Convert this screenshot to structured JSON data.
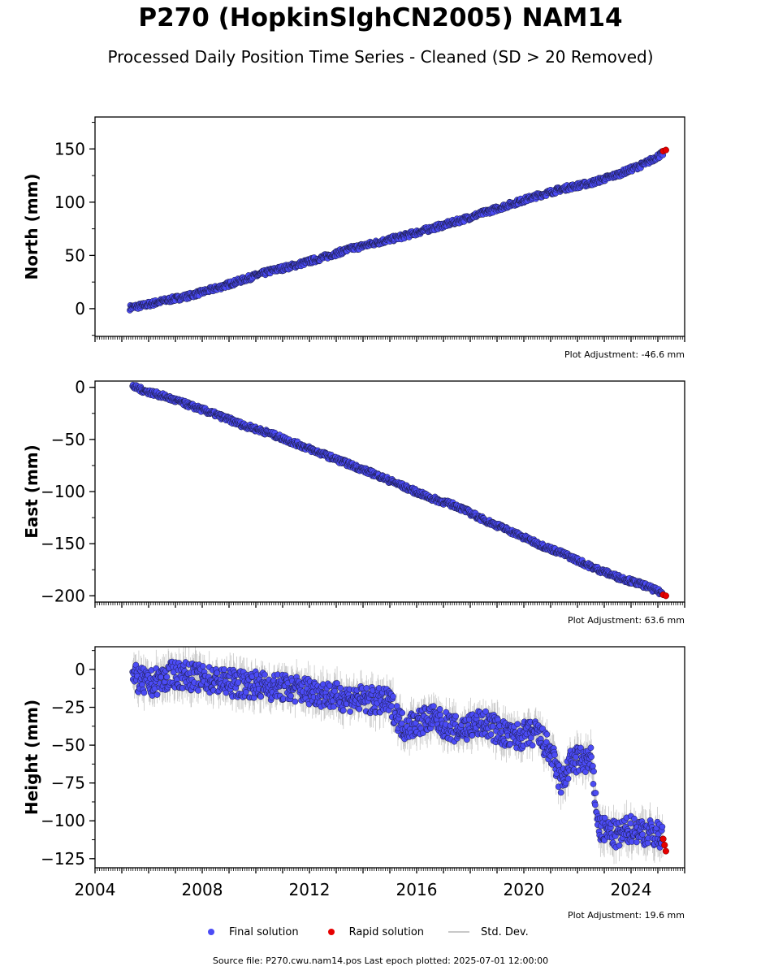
{
  "figure": {
    "title": "P270 (HopkinSlghCN2005) NAM14",
    "subtitle": "Processed Daily Position Time Series - Cleaned (SD > 20 Removed)",
    "source": "Source file: P270.cwu.nam14.pos  Last epoch plotted: 2025-07-01 12:00:00"
  },
  "legend": {
    "items": [
      {
        "label": "Final solution",
        "color": "#4b4bf5"
      },
      {
        "label": "Rapid solution",
        "color": "#e60000"
      },
      {
        "label": "Std. Dev.",
        "color": "#c8c8c8"
      }
    ]
  },
  "colors": {
    "final": "#4b4bf5",
    "rapid": "#e60000",
    "stddev": "#c8c8c8",
    "edge": "#1a1a40"
  },
  "chart_data": [
    {
      "type": "scatter",
      "ylabel": "North (mm)",
      "xlim": [
        2004,
        2026
      ],
      "ylim": [
        -26,
        180
      ],
      "yticks": [
        0,
        50,
        100,
        150
      ],
      "xticks": [],
      "adjustment": "Plot Adjustment: -46.6 mm",
      "final": [
        [
          2005.3,
          1
        ],
        [
          2005.8,
          3
        ],
        [
          2006.5,
          7
        ],
        [
          2007.5,
          12
        ],
        [
          2008.5,
          19
        ],
        [
          2009.5,
          27
        ],
        [
          2010.5,
          35
        ],
        [
          2011.5,
          41
        ],
        [
          2012.5,
          48
        ],
        [
          2013.5,
          56
        ],
        [
          2014.5,
          62
        ],
        [
          2015.5,
          68
        ],
        [
          2016.5,
          75
        ],
        [
          2017.5,
          82
        ],
        [
          2018.5,
          90
        ],
        [
          2019.5,
          98
        ],
        [
          2020.5,
          106
        ],
        [
          2021.5,
          113
        ],
        [
          2022.5,
          118
        ],
        [
          2023.5,
          126
        ],
        [
          2024.5,
          136
        ],
        [
          2025.2,
          146
        ]
      ],
      "rapid": [
        [
          2025.2,
          148
        ],
        [
          2025.3,
          149
        ]
      ],
      "scatter_amp": 2.5
    },
    {
      "type": "scatter",
      "ylabel": "East (mm)",
      "xlim": [
        2004,
        2026
      ],
      "ylim": [
        -206,
        6
      ],
      "yticks": [
        0,
        -50,
        -100,
        -150,
        -200
      ],
      "xticks": [],
      "adjustment": "Plot Adjustment: 63.6 mm",
      "final": [
        [
          2005.4,
          1
        ],
        [
          2005.8,
          -3
        ],
        [
          2006.5,
          -8
        ],
        [
          2007.5,
          -17
        ],
        [
          2008.5,
          -26
        ],
        [
          2009.5,
          -36
        ],
        [
          2010.5,
          -44
        ],
        [
          2011.5,
          -54
        ],
        [
          2012.5,
          -64
        ],
        [
          2013.5,
          -74
        ],
        [
          2014.5,
          -84
        ],
        [
          2015.5,
          -95
        ],
        [
          2016.5,
          -106
        ],
        [
          2017.5,
          -114
        ],
        [
          2018.5,
          -127
        ],
        [
          2019.5,
          -138
        ],
        [
          2020.5,
          -150
        ],
        [
          2021.5,
          -160
        ],
        [
          2022.5,
          -172
        ],
        [
          2023.5,
          -182
        ],
        [
          2024.5,
          -190
        ],
        [
          2025.2,
          -198
        ]
      ],
      "rapid": [
        [
          2025.2,
          -199
        ],
        [
          2025.3,
          -200
        ]
      ],
      "scatter_amp": 2.5
    },
    {
      "type": "scatter",
      "ylabel": "Height (mm)",
      "xlim": [
        2004,
        2026
      ],
      "ylim": [
        -131,
        15
      ],
      "yticks": [
        0,
        -25,
        -50,
        -75,
        -100,
        -125
      ],
      "xticks": [
        2004,
        2008,
        2012,
        2016,
        2020,
        2024
      ],
      "adjustment": "Plot Adjustment: 19.6 mm",
      "final": [
        [
          2005.4,
          -5
        ],
        [
          2006.0,
          -10
        ],
        [
          2007.0,
          -3
        ],
        [
          2008.0,
          -6
        ],
        [
          2009.0,
          -9
        ],
        [
          2010.0,
          -10
        ],
        [
          2011.0,
          -12
        ],
        [
          2012.0,
          -14
        ],
        [
          2013.0,
          -18
        ],
        [
          2014.0,
          -20
        ],
        [
          2015.0,
          -22
        ],
        [
          2015.5,
          -38
        ],
        [
          2016.5,
          -32
        ],
        [
          2017.5,
          -40
        ],
        [
          2018.5,
          -35
        ],
        [
          2019.5,
          -45
        ],
        [
          2020.5,
          -42
        ],
        [
          2021.0,
          -55
        ],
        [
          2021.4,
          -75
        ],
        [
          2021.8,
          -60
        ],
        [
          2022.5,
          -60
        ],
        [
          2022.8,
          -105
        ],
        [
          2023.5,
          -110
        ],
        [
          2024.0,
          -105
        ],
        [
          2025.2,
          -110
        ]
      ],
      "rapid": [
        [
          2025.2,
          -112
        ],
        [
          2025.25,
          -116
        ],
        [
          2025.3,
          -120
        ]
      ],
      "scatter_amp": 9
    }
  ]
}
